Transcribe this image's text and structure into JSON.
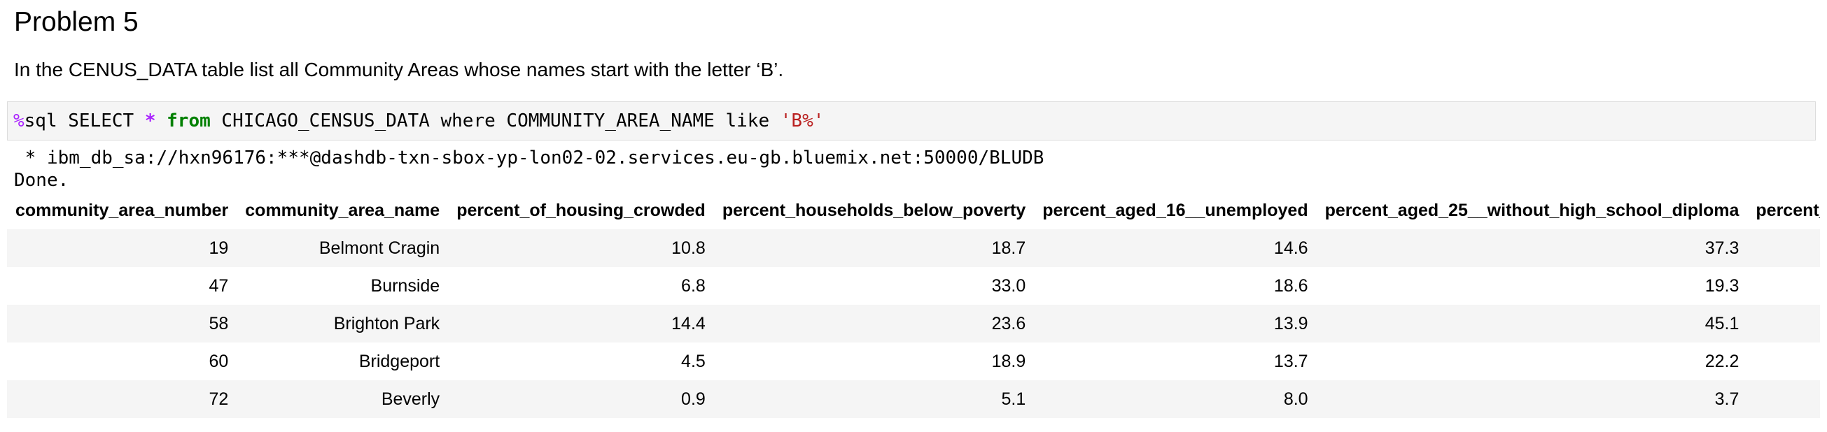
{
  "heading": "Problem 5",
  "instruction": "In the CENUS_DATA table list all Community Areas whose names start with the letter ‘B’.",
  "code": {
    "magic": "%",
    "t1": "sql SELECT ",
    "star": "*",
    "t2": " ",
    "kw_from": "from",
    "t3": " CHICAGO_CENSUS_DATA where COMMUNITY_AREA_NAME like ",
    "str": "'B%'"
  },
  "output": {
    "connection": " * ibm_db_sa://hxn96176:***@dashdb-txn-sbox-yp-lon02-02.services.eu-gb.bluemix.net:50000/BLUDB",
    "status": "Done."
  },
  "table": {
    "columns": [
      "community_area_number",
      "community_area_name",
      "percent_of_housing_crowded",
      "percent_households_below_poverty",
      "percent_aged_16__unemployed",
      "percent_aged_25__without_high_school_diploma",
      "percent_ag"
    ],
    "rows": [
      [
        "19",
        "Belmont Cragin",
        "10.8",
        "18.7",
        "14.6",
        "37.3"
      ],
      [
        "47",
        "Burnside",
        "6.8",
        "33.0",
        "18.6",
        "19.3"
      ],
      [
        "58",
        "Brighton Park",
        "14.4",
        "23.6",
        "13.9",
        "45.1"
      ],
      [
        "60",
        "Bridgeport",
        "4.5",
        "18.9",
        "13.7",
        "22.2"
      ],
      [
        "72",
        "Beverly",
        "0.9",
        "5.1",
        "8.0",
        "3.7"
      ]
    ]
  },
  "colors": {
    "code_bg": "#f5f5f5",
    "row_stripe": "#f5f5f5",
    "magic": "#aa22ff",
    "keyword": "#008000",
    "string": "#ba2121"
  }
}
